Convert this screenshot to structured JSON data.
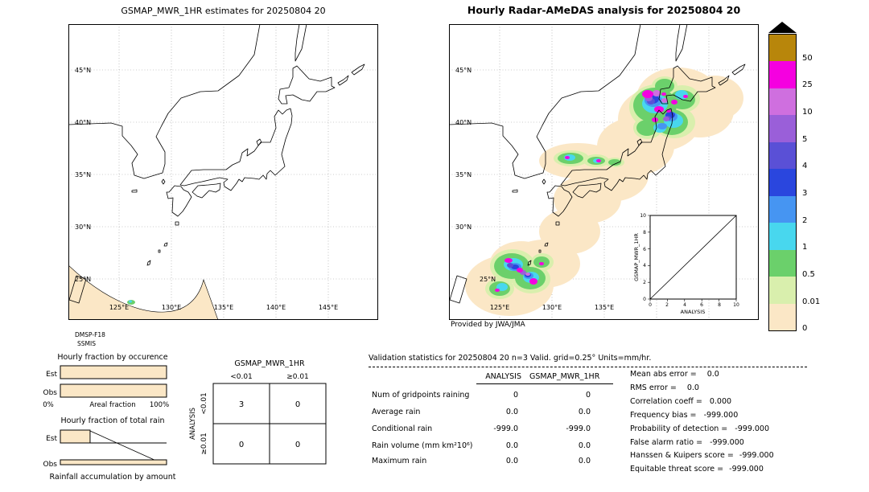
{
  "left_map": {
    "title": "GSMAP_MWR_1HR estimates for 20250804 20",
    "lat_ticks": [
      "45°N",
      "40°N",
      "35°N",
      "30°N",
      "25°N"
    ],
    "lon_ticks": [
      "125°E",
      "130°E",
      "135°E",
      "140°E",
      "145°E"
    ],
    "source_line1": "DMSP-F18",
    "source_line2": "SSMIS"
  },
  "right_map": {
    "title": "Hourly Radar-AMeDAS analysis for 20250804 20",
    "lat_ticks": [
      "45°N",
      "40°N",
      "35°N",
      "30°N",
      "25°N"
    ],
    "lon_ticks": [
      "125°E",
      "130°E",
      "135°E"
    ],
    "credit": "Provided by JWA/JMA",
    "inset": {
      "ylabel": "GSMAP_MWR_1HR",
      "xlabel": "ANALYSIS",
      "x_ticks": [
        "0",
        "2",
        "4",
        "6",
        "8",
        "10"
      ],
      "y_ticks": [
        "0",
        "2",
        "4",
        "6",
        "8",
        "10"
      ]
    }
  },
  "colorbar": {
    "units": "mm/hr",
    "tick_labels": [
      "50",
      "25",
      "10",
      "5",
      "4",
      "3",
      "2",
      "1",
      "0.5",
      "0.01",
      "0"
    ],
    "segments": [
      {
        "range": ">50",
        "color": "#b8860b"
      },
      {
        "range": "25-50",
        "color": "#f500e0"
      },
      {
        "range": "10-25",
        "color": "#cf6fdf"
      },
      {
        "range": "5-10",
        "color": "#9a5fd9"
      },
      {
        "range": "4-5",
        "color": "#5a50d6"
      },
      {
        "range": "3-4",
        "color": "#2a46de"
      },
      {
        "range": "2-3",
        "color": "#4695f2"
      },
      {
        "range": "1-2",
        "color": "#48d7ee"
      },
      {
        "range": "0.5-1",
        "color": "#6bd06b"
      },
      {
        "range": "0.01-0.5",
        "color": "#d9efad"
      },
      {
        "range": "0-0.01",
        "color": "#fbe7c6"
      }
    ]
  },
  "occurrence_chart": {
    "title": "Hourly fraction by occurence",
    "row_labels": [
      "Est",
      "Obs"
    ],
    "axis_min": "0%",
    "axis_label": "Areal fraction",
    "axis_max": "100%"
  },
  "amount_chart": {
    "title": "Hourly fraction of total rain",
    "row_labels": [
      "Est",
      "Obs"
    ],
    "caption": "Rainfall accumulation by amount"
  },
  "contingency": {
    "title": "GSMAP_MWR_1HR",
    "col_headers": [
      "<0.01",
      "≥0.01"
    ],
    "row_headers": [
      "<0.01",
      "≥0.01"
    ],
    "side_label": "ANALYSIS",
    "cells": [
      [
        "3",
        "0"
      ],
      [
        "0",
        "0"
      ]
    ]
  },
  "stats": {
    "title": "Validation statistics for 20250804 20  n=3 Valid. grid=0.25° Units=mm/hr.",
    "col_headers": [
      "ANALYSIS",
      "GSMAP_MWR_1HR"
    ],
    "rows": [
      {
        "label": "Num of gridpoints raining",
        "analysis": "0",
        "gsmap": "0"
      },
      {
        "label": "Average rain",
        "analysis": "0.0",
        "gsmap": "0.0"
      },
      {
        "label": "Conditional rain",
        "analysis": "-999.0",
        "gsmap": "-999.0"
      },
      {
        "label": "Rain volume (mm km²10⁶)",
        "analysis": "0.0",
        "gsmap": "0.0"
      },
      {
        "label": "Maximum rain",
        "analysis": "0.0",
        "gsmap": "0.0"
      }
    ],
    "scores": [
      {
        "label": "Mean abs error =",
        "value": "0.0"
      },
      {
        "label": "RMS error =",
        "value": "0.0"
      },
      {
        "label": "Correlation coeff =",
        "value": "0.000"
      },
      {
        "label": "Frequency bias =",
        "value": "-999.000"
      },
      {
        "label": "Probability of detection =",
        "value": "-999.000"
      },
      {
        "label": "False alarm ratio =",
        "value": "-999.000"
      },
      {
        "label": "Hanssen & Kuipers score =",
        "value": "-999.000"
      },
      {
        "label": "Equitable threat score =",
        "value": "-999.000"
      }
    ]
  },
  "chart_data": [
    {
      "type": "heatmap",
      "title": "GSMAP_MWR_1HR estimates for 20250804 20",
      "x_ticks": [
        "125°E",
        "130°E",
        "135°E",
        "140°E",
        "145°E"
      ],
      "y_ticks": [
        "45°N",
        "40°N",
        "35°N",
        "30°N",
        "25°N"
      ],
      "units": "mm/hr",
      "source": "DMSP-F18 SSMIS",
      "notes": "Satellite swath covers only the southwest corner of the domain (west of ~133°E, south of ~29°N); entire swath below 0.01 mm/hr except one small ~0.5 mm/hr speck near 126°E 23.5°N."
    },
    {
      "type": "heatmap",
      "title": "Hourly Radar-AMeDAS analysis for 20250804 20",
      "x_ticks": [
        "125°E",
        "130°E",
        "135°E"
      ],
      "y_ticks": [
        "45°N",
        "40°N",
        "35°N",
        "30°N",
        "25°N"
      ],
      "units": "mm/hr",
      "levels": [
        0,
        0.01,
        0.5,
        1,
        2,
        3,
        4,
        5,
        10,
        25,
        50
      ],
      "level_colors": [
        "#fbe7c6",
        "#d9efad",
        "#6bd06b",
        "#48d7ee",
        "#4695f2",
        "#2a46de",
        "#5a50d6",
        "#9a5fd9",
        "#cf6fdf",
        "#f500e0",
        "#b8860b"
      ],
      "notes": "Radar coverage band runs SW-NE. Heavy rain cluster (locally >25 mm/hr) over northern Honshu / southwestern Hokkaido ~139-142°E 38-43°N; weak band with embedded >10 mm/hr cells along the Sea of Japan coast ~133-136°E 36-37°N; convective cluster (locally >25 mm/hr) near the Amami islands ~127-131°E 26-29°N.",
      "inset": {
        "type": "scatter",
        "xlabel": "ANALYSIS",
        "ylabel": "GSMAP_MWR_1HR",
        "xlim": [
          0,
          10
        ],
        "ylim": [
          0,
          10
        ],
        "points": [],
        "diagonal": true
      }
    },
    {
      "type": "bar",
      "title": "Hourly fraction by occurence",
      "categories": [
        "Est",
        "Obs"
      ],
      "values": [
        100,
        100
      ],
      "xlabel": "Areal fraction",
      "xlim_labels": [
        "0%",
        "100%"
      ]
    },
    {
      "type": "bar",
      "title": "Hourly fraction of total rain",
      "categories": [
        "Est",
        "Obs"
      ],
      "values": [
        28,
        3
      ],
      "caption": "Rainfall accumulation by amount"
    },
    {
      "type": "table",
      "title": "GSMAP_MWR_1HR vs ANALYSIS contingency table",
      "columns": [
        "<0.01",
        "≥0.01"
      ],
      "rows": [
        "<0.01",
        "≥0.01"
      ],
      "values": [
        [
          3,
          0
        ],
        [
          0,
          0
        ]
      ]
    },
    {
      "type": "table",
      "title": "Validation statistics for 20250804 20",
      "n": 3,
      "valid_grid": "0.25°",
      "units": "mm/hr",
      "columns": [
        "ANALYSIS",
        "GSMAP_MWR_1HR"
      ],
      "rows": [
        [
          "Num of gridpoints raining",
          0,
          0
        ],
        [
          "Average rain",
          0.0,
          0.0
        ],
        [
          "Conditional rain",
          -999.0,
          -999.0
        ],
        [
          "Rain volume (mm km²10⁶)",
          0.0,
          0.0
        ],
        [
          "Maximum rain",
          0.0,
          0.0
        ]
      ],
      "scores": {
        "Mean abs error": 0.0,
        "RMS error": 0.0,
        "Correlation coeff": 0.0,
        "Frequency bias": -999.0,
        "Probability of detection": -999.0,
        "False alarm ratio": -999.0,
        "Hanssen & Kuipers score": -999.0,
        "Equitable threat score": -999.0
      }
    }
  ]
}
